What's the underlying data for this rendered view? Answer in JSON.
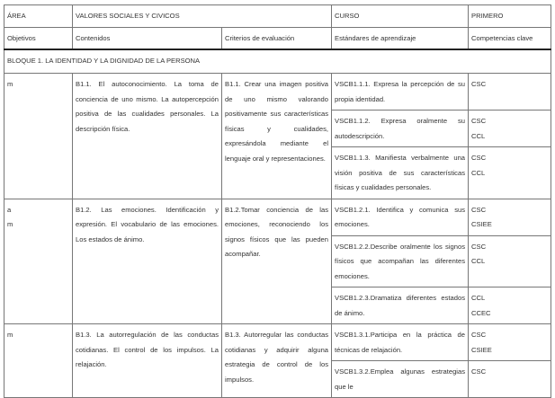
{
  "header": {
    "area_label": "ÁREA",
    "area_value": "VALORES SOCIALES Y CIVICOS",
    "curso_label": "CURSO",
    "curso_value": "PRIMERO"
  },
  "columns": [
    "Objetivos",
    "Contenidos",
    "Criterios de evaluación",
    "Estándares de aprendizaje",
    "Competencias clave"
  ],
  "bloque_title": "BLOQUE 1. LA IDENTIDAD Y LA DIGNIDAD DE LA PERSONA",
  "rows": [
    {
      "objetivos": [
        "m"
      ],
      "contenidos": "B1.1. El autoconocimiento. La toma de conciencia de uno mismo. La autopercepción positiva de las cualidades personales. La descripción física.",
      "criterios": "B1.1. Crear una imagen positiva de uno mismo valorando positivamente sus características físicas y cualidades, expresándola mediante el lenguaje oral y representaciones.",
      "estandares": [
        {
          "text": "VSCB1.1.1. Expresa la percepción de su propia identidad.",
          "competencias": [
            "CSC"
          ]
        },
        {
          "text": "VSCB1.1.2. Expresa oralmente su autodescripción.",
          "competencias": [
            "CSC",
            "CCL"
          ]
        },
        {
          "text": "VSCB1.1.3. Manifiesta verbalmente una visión positiva de sus características físicas y cualidades personales.",
          "competencias": [
            "CSC",
            "CCL"
          ]
        }
      ]
    },
    {
      "objetivos": [
        "a",
        "m"
      ],
      "contenidos": "B1.2. Las emociones. Identificación y expresión. El vocabulario de las emociones. Los estados de ánimo.",
      "criterios": "B1.2.Tomar conciencia de las emociones, reconociendo los signos físicos que las pueden acompañar.",
      "estandares": [
        {
          "text": "VSCB1.2.1. Identifica y comunica sus emociones.",
          "competencias": [
            "CSC",
            "CSIEE"
          ]
        },
        {
          "text": "VSCB1.2.2.Describe oralmente los signos físicos que acompañan las diferentes emociones.",
          "competencias": [
            "CSC",
            "CCL"
          ]
        },
        {
          "text": "VSCB1.2.3.Dramatiza diferentes estados de ánimo.",
          "competencias": [
            "CCL",
            "CCEC"
          ]
        }
      ]
    },
    {
      "objetivos": [
        "m"
      ],
      "contenidos": "B1.3. La autorregulación de las conductas cotidianas. El control de los impulsos. La relajación.",
      "criterios": "B1.3. Autorregular las conductas cotidianas y adquirir alguna estrategia de control de los impulsos.",
      "estandares": [
        {
          "text": "VSCB1.3.1.Participa en la práctica de técnicas de relajación.",
          "competencias": [
            "CSC",
            "CSIEE"
          ]
        },
        {
          "text": "VSCB1.3.2.Emplea algunas estrategias que le",
          "competencias": [
            "CSC"
          ]
        }
      ]
    }
  ]
}
